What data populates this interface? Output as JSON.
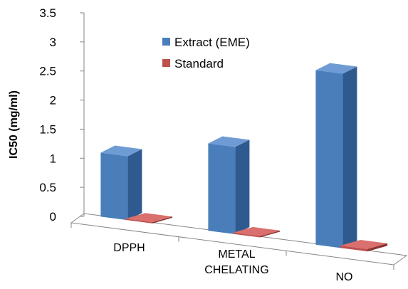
{
  "chart_data": {
    "type": "bar",
    "title": "",
    "xlabel": "",
    "ylabel": "IC50 (mg/ml)",
    "ylim": [
      0,
      3.5
    ],
    "yticks": [
      "0",
      "0.5",
      "1",
      "1.5",
      "2",
      "2.5",
      "3",
      "3.5"
    ],
    "categories": [
      {
        "lines": [
          "DPPH"
        ]
      },
      {
        "lines": [
          "METAL",
          "CHELATING"
        ]
      },
      {
        "lines": [
          "NO"
        ]
      }
    ],
    "series": [
      {
        "name": "Extract (EME)",
        "values": [
          1.1,
          1.5,
          3.0
        ]
      },
      {
        "name": "Standard",
        "values": [
          0.02,
          0.02,
          0.04
        ]
      }
    ],
    "legend_position": "top-center",
    "grid": false,
    "style": "3d-clustered-column"
  },
  "colors": {
    "extract": {
      "front": "#4a7ebb",
      "side": "#2f5a8f",
      "top": "#6f9bd4"
    },
    "standard": {
      "front": "#c0504d",
      "side": "#8c3330",
      "top": "#d9706d"
    },
    "axis": "#868686"
  }
}
